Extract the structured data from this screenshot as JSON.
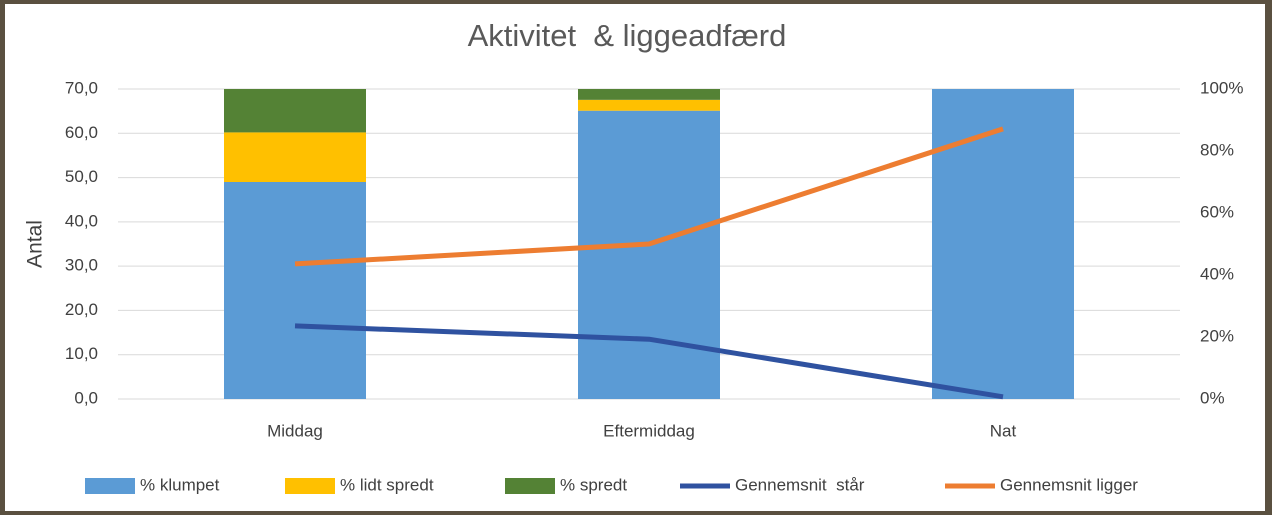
{
  "chart_data": {
    "type": "combo",
    "title": "Aktivitet  & liggeadfærd",
    "y_label": "Antal",
    "categories": [
      "Middag",
      "Eftermiddag",
      "Nat"
    ],
    "series": [
      {
        "name": "% klumpet",
        "type": "bar",
        "axis": "y2",
        "color": "#5b9bd5",
        "values": [
          70,
          93,
          100
        ]
      },
      {
        "name": "% lidt spredt",
        "type": "bar",
        "axis": "y2",
        "color": "#ffc000",
        "values": [
          16,
          3.5,
          0
        ]
      },
      {
        "name": "% spredt",
        "type": "bar",
        "axis": "y2",
        "color": "#548235",
        "values": [
          14,
          3.5,
          0
        ]
      },
      {
        "name": "Gennemsnit  står",
        "type": "line",
        "color": "#2f52a0",
        "values": [
          16.5,
          13.5,
          0.5
        ]
      },
      {
        "name": "Gennemsnit ligger",
        "type": "line",
        "color": "#ed7d31",
        "values": [
          30.5,
          35,
          61
        ]
      }
    ],
    "ylim": [
      0,
      70
    ],
    "yticks": [
      {
        "value": 0,
        "label": "0,0"
      },
      {
        "value": 10,
        "label": "10,0"
      },
      {
        "value": 20,
        "label": "20,0"
      },
      {
        "value": 30,
        "label": "30,0"
      },
      {
        "value": 40,
        "label": "40,0"
      },
      {
        "value": 50,
        "label": "50,0"
      },
      {
        "value": 60,
        "label": "60,0"
      },
      {
        "value": 70,
        "label": "70,0"
      }
    ],
    "y2lim": [
      0,
      100
    ],
    "y2ticks": [
      {
        "value": 0,
        "label": "0%"
      },
      {
        "value": 20,
        "label": "20%"
      },
      {
        "value": 40,
        "label": "40%"
      },
      {
        "value": 60,
        "label": "60%"
      },
      {
        "value": 80,
        "label": "80%"
      },
      {
        "value": 100,
        "label": "100%"
      }
    ],
    "grid": true,
    "legend": "bottom"
  }
}
